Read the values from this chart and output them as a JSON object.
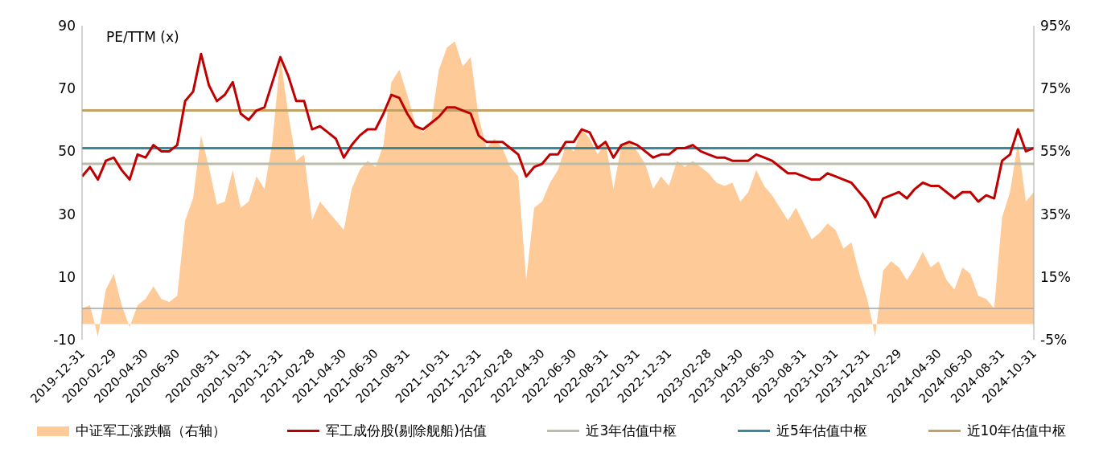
{
  "chart_data": {
    "type": "line",
    "ylabel": "PE/TTM (x)",
    "categories": [
      "2019-12-31",
      null,
      null,
      null,
      "2020-02-29",
      null,
      null,
      null,
      "2020-04-30",
      null,
      null,
      null,
      "2020-06-30",
      null,
      null,
      null,
      null,
      "2020-08-31",
      null,
      null,
      null,
      "2020-10-31",
      null,
      null,
      null,
      "2020-12-31",
      null,
      null,
      null,
      "2021-02-28",
      null,
      null,
      null,
      "2021-04-30",
      null,
      null,
      null,
      "2021-06-30",
      null,
      null,
      null,
      "2021-08-31",
      null,
      null,
      null,
      null,
      "2021-10-31",
      null,
      null,
      null,
      "2021-12-31",
      null,
      null,
      null,
      "2022-02-28",
      null,
      null,
      null,
      "2022-04-30",
      null,
      null,
      null,
      "2022-06-30",
      null,
      null,
      null,
      "2022-08-31",
      null,
      null,
      null,
      "2022-10-31",
      null,
      null,
      null,
      "2022-12-31",
      null,
      null,
      null,
      null,
      "2023-02-28",
      null,
      null,
      null,
      "2023-04-30",
      null,
      null,
      null,
      "2023-06-30",
      null,
      null,
      null,
      "2023-08-31",
      null,
      null,
      null,
      "2023-10-31",
      null,
      null,
      null,
      "2023-12-31",
      null,
      null,
      null,
      "2024-02-29",
      null,
      null,
      null,
      null,
      "2024-04-30",
      null,
      null,
      null,
      "2024-06-30",
      null,
      null,
      null,
      "2024-08-31",
      null,
      null,
      null,
      "2024-10-31"
    ],
    "series": [
      {
        "type": "area",
        "name": "中证军工涨跌幅（右轴）",
        "color": "#fdca98",
        "axis": "y2",
        "values": [
          5,
          6,
          -4,
          11,
          16,
          6,
          -1,
          6,
          8,
          12,
          8,
          7,
          9,
          33,
          40,
          60,
          50,
          38,
          39,
          49,
          37,
          39,
          47,
          43,
          58,
          85,
          67,
          52,
          54,
          33,
          39,
          36,
          33,
          30,
          43,
          49,
          52,
          50,
          57,
          77,
          81,
          73,
          64,
          61,
          64,
          81,
          88,
          90,
          82,
          85,
          66,
          56,
          59,
          56,
          50,
          47,
          14,
          37,
          39,
          45,
          49,
          57,
          55,
          62,
          59,
          54,
          58,
          43,
          57,
          58,
          55,
          51,
          43,
          47,
          44,
          52,
          50,
          52,
          50,
          48,
          45,
          44,
          45,
          39,
          42,
          49,
          44,
          41,
          37,
          33,
          37,
          32,
          27,
          29,
          32,
          30,
          24,
          26,
          16,
          8,
          -4,
          17,
          20,
          18,
          14,
          18,
          23,
          18,
          20,
          14,
          11,
          18,
          16,
          9,
          8,
          5,
          34,
          42,
          58,
          39,
          42
        ]
      },
      {
        "type": "line",
        "name": "军工成份股(剔除舰船)估值",
        "color": "#c00000",
        "values": [
          42,
          45,
          41,
          47,
          48,
          44,
          41,
          49,
          48,
          52,
          50,
          50,
          52,
          66,
          69,
          81,
          71,
          66,
          68,
          72,
          62,
          60,
          63,
          64,
          72,
          80,
          74,
          66,
          66,
          57,
          58,
          56,
          54,
          48,
          52,
          55,
          57,
          57,
          62,
          68,
          67,
          62,
          58,
          57,
          59,
          61,
          64,
          64,
          63,
          62,
          55,
          53,
          53,
          53,
          51,
          49,
          42,
          45,
          46,
          49,
          49,
          53,
          53,
          57,
          56,
          51,
          53,
          48,
          52,
          53,
          52,
          50,
          48,
          49,
          49,
          51,
          51,
          52,
          50,
          49,
          48,
          48,
          47,
          47,
          47,
          49,
          48,
          47,
          45,
          43,
          43,
          42,
          41,
          41,
          43,
          42,
          41,
          40,
          37,
          34,
          29,
          35,
          36,
          37,
          35,
          38,
          40,
          39,
          39,
          37,
          35,
          37,
          37,
          34,
          36,
          35,
          47,
          49,
          57,
          50,
          51
        ]
      }
    ],
    "ylim": [
      -10,
      90
    ],
    "yticks": [
      -10,
      10,
      30,
      50,
      70,
      90
    ],
    "y2lim": [
      -5,
      95
    ],
    "y2ticks": [
      {
        "value": -5,
        "label": "-5%"
      },
      {
        "value": 15,
        "label": "15%"
      },
      {
        "value": 35,
        "label": "35%"
      },
      {
        "value": 55,
        "label": "55%"
      },
      {
        "value": 75,
        "label": "75%"
      },
      {
        "value": 95,
        "label": "95%"
      }
    ],
    "ref_lines": [
      {
        "axis": "y",
        "value": 0,
        "color": "#a6a6a6"
      },
      {
        "axis": "y",
        "value": 46,
        "label": "近3年估值中枢",
        "color": "#bcbcaa"
      },
      {
        "axis": "y",
        "value": 51,
        "label": "近5年估值中枢",
        "color": "#3a8a9e"
      },
      {
        "axis": "y",
        "value": 63,
        "label": "近10年估值中枢",
        "color": "#c4a265"
      }
    ],
    "legend": "bottom"
  }
}
